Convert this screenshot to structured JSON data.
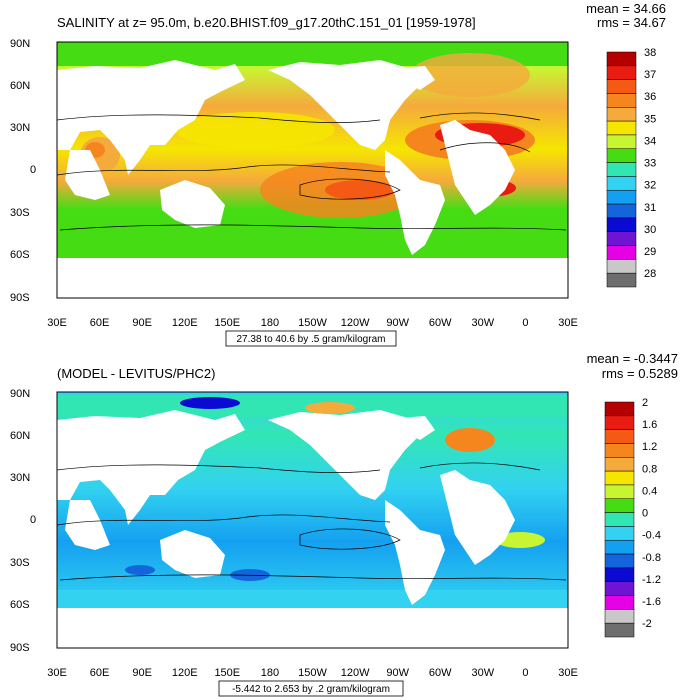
{
  "panels": [
    {
      "title": "SALINITY at z=  95.0m, b.e20.BHIST.f09_g17.20thC.151_01 [1959-1978]",
      "mean_text": "mean = 34.66",
      "rms_text": "rms = 34.67",
      "contour_info": "27.38 to 40.6 by .5 gram/kilogram",
      "colorbar_labels": [
        "38",
        "37",
        "36",
        "35",
        "34",
        "33",
        "32",
        "31",
        "30",
        "29",
        "28"
      ],
      "colorbar_colors": [
        "#b40000",
        "#e81c10",
        "#f55a14",
        "#f5861e",
        "#f5aa3c",
        "#f5e600",
        "#c8f532",
        "#46dc14",
        "#32e6b4",
        "#32d2f0",
        "#14a0f0",
        "#1464dc",
        "#0a0ad2",
        "#6e14d2",
        "#e600e6",
        "#c8c8c8",
        "#6e6e6e"
      ]
    },
    {
      "title": "(MODEL - LEVITUS/PHC2)",
      "mean_text": "mean = -0.3447",
      "rms_text": "rms = 0.5289",
      "contour_info": "-5.442 to 2.653 by .2 gram/kilogram",
      "colorbar_labels": [
        "2",
        "1.6",
        "1.2",
        "0.8",
        "0.4",
        "0",
        "-0.4",
        "-0.8",
        "-1.2",
        "-1.6",
        "-2"
      ],
      "colorbar_colors": [
        "#b40000",
        "#e81c10",
        "#f55a14",
        "#f5861e",
        "#f5aa3c",
        "#f5e600",
        "#c8f532",
        "#46dc14",
        "#32e6b4",
        "#32d2f0",
        "#14a0f0",
        "#1464dc",
        "#0a0ad2",
        "#6e14d2",
        "#e600e6",
        "#c8c8c8",
        "#6e6e6e"
      ]
    }
  ],
  "lat_labels": [
    "90N",
    "60N",
    "30N",
    "0",
    "30S",
    "60S",
    "90S"
  ],
  "lon_labels": [
    "30E",
    "60E",
    "90E",
    "120E",
    "150E",
    "180",
    "150W",
    "120W",
    "90W",
    "60W",
    "30W",
    "0",
    "30E"
  ]
}
